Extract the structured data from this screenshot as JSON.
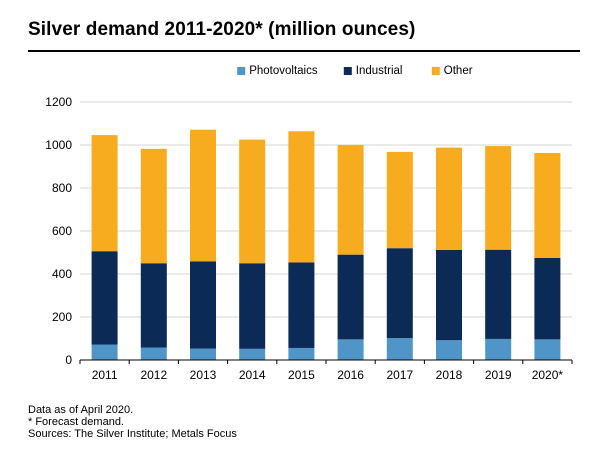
{
  "title": "Silver demand 2011-2020* (million ounces)",
  "notes": [
    "Data as of April 2020.",
    "* Forecast demand.",
    "Sources: The Silver Institute; Metals Focus"
  ],
  "colors": {
    "Photovoltaics": "#4f95c8",
    "Industrial": "#0b2a55",
    "Other": "#f7ab1f",
    "grid": "#d4d4d4",
    "axis": "#000000"
  },
  "chart_data": {
    "type": "bar",
    "stacked": true,
    "categories": [
      "2011",
      "2012",
      "2013",
      "2014",
      "2015",
      "2016",
      "2017",
      "2018",
      "2019",
      "2020*"
    ],
    "series": [
      {
        "name": "Photovoltaics",
        "values": [
          72,
          58,
          53,
          52,
          56,
          96,
          102,
          92,
          98,
          96
        ]
      },
      {
        "name": "Industrial",
        "values": [
          434,
          392,
          406,
          398,
          398,
          394,
          418,
          420,
          415,
          379
        ]
      },
      {
        "name": "Other",
        "values": [
          540,
          532,
          612,
          575,
          610,
          510,
          448,
          476,
          482,
          488
        ]
      }
    ],
    "ylim": [
      0,
      1200
    ],
    "yticks": [
      0,
      200,
      400,
      600,
      800,
      1000,
      1200
    ],
    "grid": true,
    "legend": "top-center"
  }
}
